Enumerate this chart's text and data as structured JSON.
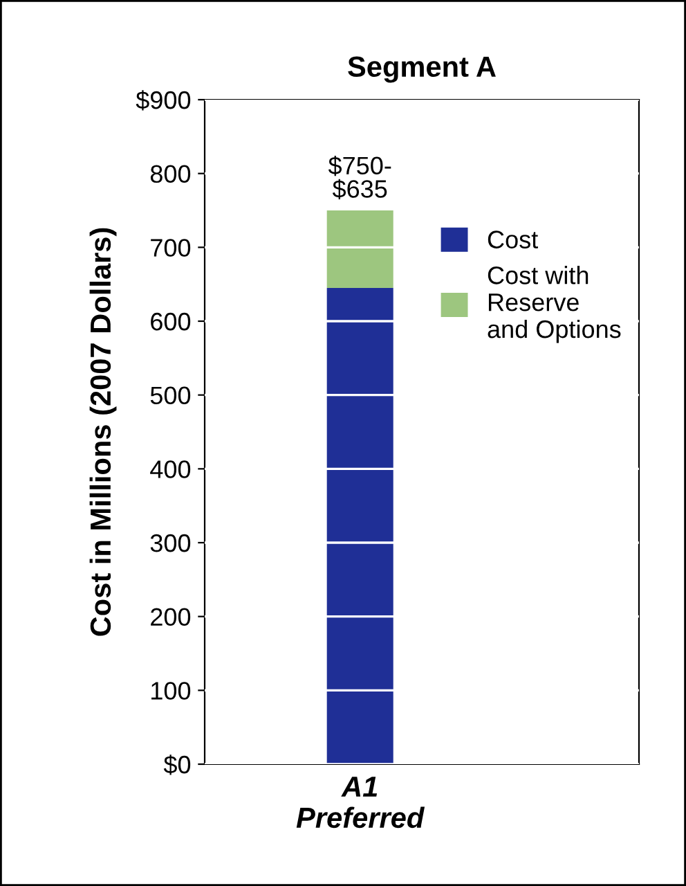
{
  "chart_data": {
    "type": "bar",
    "title": "Segment A",
    "ylabel": "Cost in Millions (2007 Dollars)",
    "categories": [
      "A1\nPreferred"
    ],
    "stacked": true,
    "series": [
      {
        "name": "Cost",
        "color": "#1f2f96",
        "values": [
          645
        ]
      },
      {
        "name": "Cost with\nReserve\nand Options",
        "color": "#9dc67f",
        "values": [
          105
        ]
      }
    ],
    "ylim": [
      0,
      900
    ],
    "yticks": [
      {
        "value": 0,
        "label": "$0"
      },
      100,
      200,
      300,
      400,
      500,
      600,
      700,
      800,
      {
        "value": 900,
        "label": "$900"
      }
    ],
    "annotations": [
      {
        "text": "$750-\n$635",
        "x": "A1\nPreferred",
        "y": 750
      }
    ],
    "grid": "y",
    "legend": "right"
  }
}
